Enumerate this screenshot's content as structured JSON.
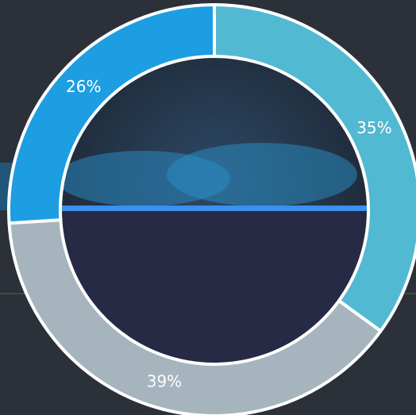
{
  "chart_data": {
    "type": "donut",
    "values": [
      35,
      39,
      26
    ],
    "value_labels": [
      "35%",
      "39%",
      "26%"
    ],
    "colors": [
      "#52b9d2",
      "#a6b4bd",
      "#1d9de2"
    ]
  }
}
